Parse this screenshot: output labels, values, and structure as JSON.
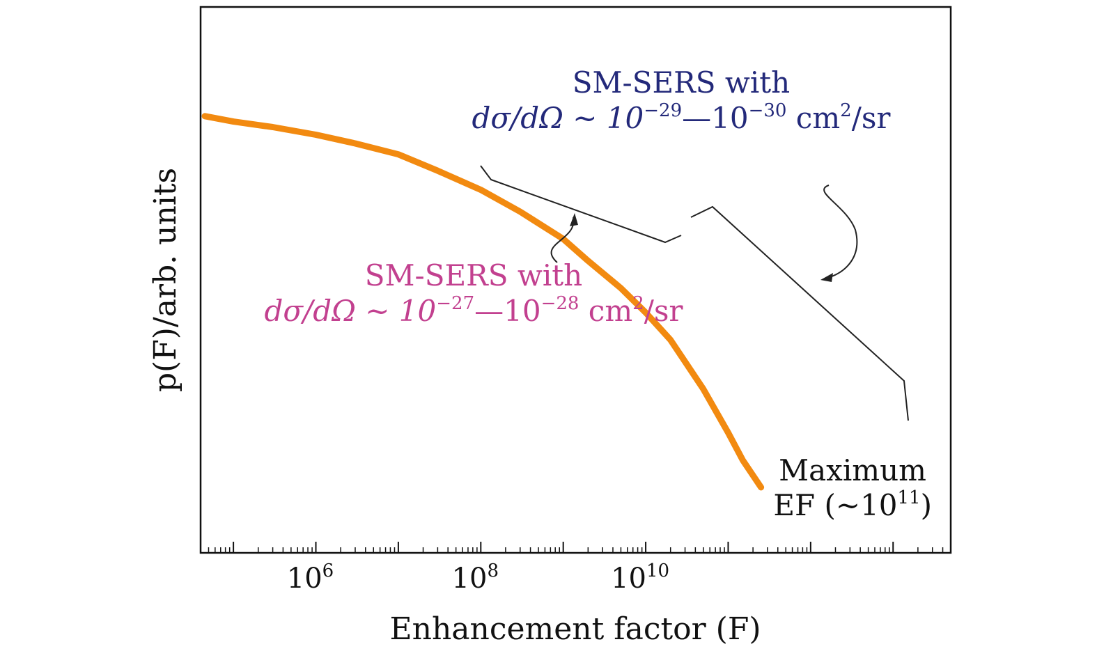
{
  "chart_data": {
    "type": "line",
    "title": "",
    "xlabel": "Enhancement factor (F)",
    "ylabel": "p(F)/arb. units",
    "x_scale": "log",
    "xlim": [
      40000,
      50000000000000
    ],
    "ylim": [
      0,
      1
    ],
    "y_ticks": false,
    "grid": false,
    "x_ticks": [
      {
        "value": 1000000,
        "base": "10",
        "exp": "6"
      },
      {
        "value": 100000000,
        "base": "10",
        "exp": "8"
      },
      {
        "value": 10000000000,
        "base": "10",
        "exp": "10"
      }
    ],
    "series": [
      {
        "color": "#f28a10",
        "x": [
          45000,
          100000,
          300000,
          1000000,
          3000000,
          10000000,
          30000000,
          100000000,
          300000000,
          1000000000,
          2000000000,
          5000000000,
          10000000000,
          20000000000,
          50000000000,
          100000000000,
          150000000000,
          250000000000
        ],
        "y": [
          0.8,
          0.79,
          0.78,
          0.766,
          0.75,
          0.73,
          0.7,
          0.665,
          0.625,
          0.575,
          0.535,
          0.485,
          0.44,
          0.39,
          0.3,
          0.22,
          0.17,
          0.12
        ]
      }
    ],
    "annotations": {
      "high_sm": {
        "line1": "SM-SERS with",
        "line2_pre": "dσ/dΩ ~ 10",
        "exp_a": "−29",
        "dash": "—10",
        "exp_b": "−30",
        "unit": " cm",
        "unit_exp": "2",
        "unit_post": "/sr",
        "color": "#23297a"
      },
      "low_sm": {
        "line1": "SM-SERS with",
        "line2_pre": "dσ/dΩ ~ 10",
        "exp_a": "−27",
        "dash": "—10",
        "exp_b": "−28",
        "unit": " cm",
        "unit_exp": "2",
        "unit_post": "/sr",
        "color": "#c2408f"
      },
      "max_ef": {
        "line1": "Maximum",
        "line2_pre": "EF (~10",
        "exp": "11",
        "line2_post": ")",
        "color": "#111111"
      }
    }
  }
}
